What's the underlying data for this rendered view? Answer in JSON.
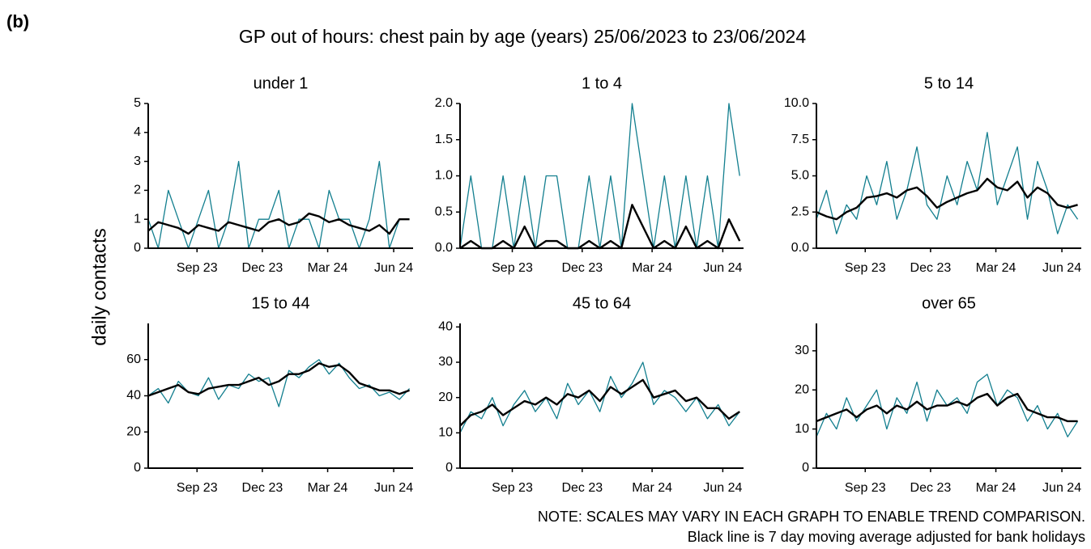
{
  "figure": {
    "label": "(b)",
    "title": "GP out of hours: chest pain by age (years) 25/06/2023 to 23/06/2024",
    "ylabel": "daily contacts",
    "notes": [
      "NOTE: SCALES MAY VARY IN EACH GRAPH TO ENABLE TREND COMPARISON.",
      "Black line is 7 day moving average adjusted for bank holidays"
    ]
  },
  "chart_data": [
    {
      "type": "line",
      "title": "under 1",
      "x": [
        "2023-06-25",
        "2023-07-09",
        "2023-07-23",
        "2023-08-06",
        "2023-08-20",
        "2023-09-03",
        "2023-09-17",
        "2023-10-01",
        "2023-10-15",
        "2023-10-29",
        "2023-11-12",
        "2023-11-26",
        "2023-12-10",
        "2023-12-24",
        "2024-01-07",
        "2024-01-21",
        "2024-02-04",
        "2024-02-18",
        "2024-03-03",
        "2024-03-17",
        "2024-03-31",
        "2024-04-14",
        "2024-04-28",
        "2024-05-12",
        "2024-05-26",
        "2024-06-09",
        "2024-06-23"
      ],
      "xlim": [
        "2023-06-25",
        "2024-06-28"
      ],
      "xticks": [
        {
          "value": "2023-09-01",
          "label": "Sep 23"
        },
        {
          "value": "2023-12-01",
          "label": "Dec 23"
        },
        {
          "value": "2024-03-01",
          "label": "Mar 24"
        },
        {
          "value": "2024-06-01",
          "label": "Jun 24"
        }
      ],
      "ylim": [
        0,
        5
      ],
      "yticks": [
        0,
        1,
        2,
        3,
        4,
        5
      ],
      "series": [
        {
          "name": "daily",
          "color": "#137f8f",
          "values": [
            1,
            0,
            2,
            1,
            0,
            1,
            2,
            0,
            1,
            3,
            0,
            1,
            1,
            2,
            0,
            1,
            1,
            0,
            2,
            1,
            1,
            0,
            1,
            3,
            0,
            1,
            1
          ]
        },
        {
          "name": "7 day average",
          "color": "#000000",
          "values": [
            0.6,
            0.9,
            0.8,
            0.7,
            0.5,
            0.8,
            0.7,
            0.6,
            0.9,
            0.8,
            0.7,
            0.6,
            0.9,
            1.0,
            0.8,
            0.9,
            1.2,
            1.1,
            0.9,
            1.0,
            0.8,
            0.7,
            0.6,
            0.8,
            0.5,
            1.0,
            1.0
          ]
        }
      ]
    },
    {
      "type": "line",
      "title": "1 to 4",
      "x": [
        "2023-06-25",
        "2023-07-09",
        "2023-07-23",
        "2023-08-06",
        "2023-08-20",
        "2023-09-03",
        "2023-09-17",
        "2023-10-01",
        "2023-10-15",
        "2023-10-29",
        "2023-11-12",
        "2023-11-26",
        "2023-12-10",
        "2023-12-24",
        "2024-01-07",
        "2024-01-21",
        "2024-02-04",
        "2024-02-18",
        "2024-03-03",
        "2024-03-17",
        "2024-03-31",
        "2024-04-14",
        "2024-04-28",
        "2024-05-12",
        "2024-05-26",
        "2024-06-09",
        "2024-06-23"
      ],
      "xlim": [
        "2023-06-25",
        "2024-06-28"
      ],
      "xticks": [
        {
          "value": "2023-09-01",
          "label": "Sep 23"
        },
        {
          "value": "2023-12-01",
          "label": "Dec 23"
        },
        {
          "value": "2024-03-01",
          "label": "Mar 24"
        },
        {
          "value": "2024-06-01",
          "label": "Jun 24"
        }
      ],
      "ylim": [
        0,
        2
      ],
      "yticks": [
        {
          "value": 0,
          "label": "0.0"
        },
        {
          "value": 0.5,
          "label": "0.5"
        },
        {
          "value": 1,
          "label": "1.0"
        },
        {
          "value": 1.5,
          "label": "1.5"
        },
        {
          "value": 2,
          "label": "2.0"
        }
      ],
      "series": [
        {
          "name": "daily",
          "color": "#137f8f",
          "values": [
            0,
            1,
            0,
            0,
            1,
            0,
            1,
            0,
            1,
            1,
            0,
            0,
            1,
            0,
            1,
            0,
            2,
            1,
            0,
            1,
            0,
            1,
            0,
            1,
            0,
            2,
            1
          ]
        },
        {
          "name": "7 day average",
          "color": "#000000",
          "values": [
            0,
            0.1,
            0,
            0,
            0.1,
            0,
            0.3,
            0,
            0.1,
            0.1,
            0,
            0,
            0.1,
            0,
            0.1,
            0,
            0.6,
            0.3,
            0,
            0.1,
            0,
            0.3,
            0,
            0.1,
            0,
            0.4,
            0.1
          ]
        }
      ]
    },
    {
      "type": "line",
      "title": "5 to 14",
      "x": [
        "2023-06-25",
        "2023-07-09",
        "2023-07-23",
        "2023-08-06",
        "2023-08-20",
        "2023-09-03",
        "2023-09-17",
        "2023-10-01",
        "2023-10-15",
        "2023-10-29",
        "2023-11-12",
        "2023-11-26",
        "2023-12-10",
        "2023-12-24",
        "2024-01-07",
        "2024-01-21",
        "2024-02-04",
        "2024-02-18",
        "2024-03-03",
        "2024-03-17",
        "2024-03-31",
        "2024-04-14",
        "2024-04-28",
        "2024-05-12",
        "2024-05-26",
        "2024-06-09",
        "2024-06-23"
      ],
      "xlim": [
        "2023-06-25",
        "2024-06-28"
      ],
      "xticks": [
        {
          "value": "2023-09-01",
          "label": "Sep 23"
        },
        {
          "value": "2023-12-01",
          "label": "Dec 23"
        },
        {
          "value": "2024-03-01",
          "label": "Mar 24"
        },
        {
          "value": "2024-06-01",
          "label": "Jun 24"
        }
      ],
      "ylim": [
        0,
        10
      ],
      "yticks": [
        {
          "value": 0,
          "label": "0.0"
        },
        {
          "value": 2.5,
          "label": "2.5"
        },
        {
          "value": 5,
          "label": "5.0"
        },
        {
          "value": 7.5,
          "label": "7.5"
        },
        {
          "value": 10,
          "label": "10.0"
        }
      ],
      "series": [
        {
          "name": "daily",
          "color": "#137f8f",
          "values": [
            2,
            4,
            1,
            3,
            2,
            5,
            3,
            6,
            2,
            4,
            7,
            3,
            2,
            5,
            3,
            6,
            4,
            8,
            3,
            5,
            7,
            2,
            6,
            4,
            1,
            3,
            2
          ]
        },
        {
          "name": "7 day average",
          "color": "#000000",
          "values": [
            2.5,
            2.2,
            2.0,
            2.5,
            2.8,
            3.5,
            3.6,
            3.8,
            3.5,
            4.0,
            4.2,
            3.6,
            2.8,
            3.2,
            3.5,
            3.8,
            4.0,
            4.8,
            4.2,
            4.0,
            4.6,
            3.5,
            4.2,
            3.8,
            3.0,
            2.8,
            3.0
          ]
        }
      ]
    },
    {
      "type": "line",
      "title": "15 to 44",
      "x": [
        "2023-06-25",
        "2023-07-09",
        "2023-07-23",
        "2023-08-06",
        "2023-08-20",
        "2023-09-03",
        "2023-09-17",
        "2023-10-01",
        "2023-10-15",
        "2023-10-29",
        "2023-11-12",
        "2023-11-26",
        "2023-12-10",
        "2023-12-24",
        "2024-01-07",
        "2024-01-21",
        "2024-02-04",
        "2024-02-18",
        "2024-03-03",
        "2024-03-17",
        "2024-03-31",
        "2024-04-14",
        "2024-04-28",
        "2024-05-12",
        "2024-05-26",
        "2024-06-09",
        "2024-06-23"
      ],
      "xlim": [
        "2023-06-25",
        "2024-06-28"
      ],
      "xticks": [
        {
          "value": "2023-09-01",
          "label": "Sep 23"
        },
        {
          "value": "2023-12-01",
          "label": "Dec 23"
        },
        {
          "value": "2024-03-01",
          "label": "Mar 24"
        },
        {
          "value": "2024-06-01",
          "label": "Jun 24"
        }
      ],
      "ylim": [
        0,
        80
      ],
      "yticks": [
        0,
        20,
        40,
        60
      ],
      "series": [
        {
          "name": "daily",
          "color": "#137f8f",
          "values": [
            40,
            44,
            36,
            48,
            42,
            40,
            50,
            38,
            46,
            44,
            52,
            48,
            50,
            34,
            54,
            50,
            56,
            60,
            52,
            58,
            50,
            44,
            46,
            40,
            42,
            38,
            44
          ]
        },
        {
          "name": "7 day average",
          "color": "#000000",
          "values": [
            40,
            42,
            44,
            46,
            42,
            41,
            44,
            45,
            46,
            46,
            48,
            50,
            46,
            48,
            52,
            52,
            54,
            58,
            56,
            57,
            53,
            47,
            45,
            43,
            43,
            41,
            43
          ]
        }
      ]
    },
    {
      "type": "line",
      "title": "45 to 64",
      "x": [
        "2023-06-25",
        "2023-07-09",
        "2023-07-23",
        "2023-08-06",
        "2023-08-20",
        "2023-09-03",
        "2023-09-17",
        "2023-10-01",
        "2023-10-15",
        "2023-10-29",
        "2023-11-12",
        "2023-11-26",
        "2023-12-10",
        "2023-12-24",
        "2024-01-07",
        "2024-01-21",
        "2024-02-04",
        "2024-02-18",
        "2024-03-03",
        "2024-03-17",
        "2024-03-31",
        "2024-04-14",
        "2024-04-28",
        "2024-05-12",
        "2024-05-26",
        "2024-06-09",
        "2024-06-23"
      ],
      "xlim": [
        "2023-06-25",
        "2024-06-28"
      ],
      "xticks": [
        {
          "value": "2023-09-01",
          "label": "Sep 23"
        },
        {
          "value": "2023-12-01",
          "label": "Dec 23"
        },
        {
          "value": "2024-03-01",
          "label": "Mar 24"
        },
        {
          "value": "2024-06-01",
          "label": "Jun 24"
        }
      ],
      "ylim": [
        0,
        41
      ],
      "yticks": [
        0,
        10,
        20,
        30,
        40
      ],
      "series": [
        {
          "name": "daily",
          "color": "#137f8f",
          "values": [
            10,
            16,
            14,
            20,
            12,
            18,
            22,
            16,
            20,
            14,
            24,
            18,
            22,
            16,
            26,
            20,
            24,
            30,
            18,
            22,
            20,
            16,
            20,
            14,
            18,
            12,
            16
          ]
        },
        {
          "name": "7 day average",
          "color": "#000000",
          "values": [
            12,
            15,
            16,
            18,
            15,
            17,
            19,
            18,
            20,
            18,
            21,
            20,
            22,
            19,
            23,
            21,
            23,
            25,
            20,
            21,
            22,
            19,
            20,
            17,
            17,
            14,
            16
          ]
        }
      ]
    },
    {
      "type": "line",
      "title": "over 65",
      "x": [
        "2023-06-25",
        "2023-07-09",
        "2023-07-23",
        "2023-08-06",
        "2023-08-20",
        "2023-09-03",
        "2023-09-17",
        "2023-10-01",
        "2023-10-15",
        "2023-10-29",
        "2023-11-12",
        "2023-11-26",
        "2023-12-10",
        "2023-12-24",
        "2024-01-07",
        "2024-01-21",
        "2024-02-04",
        "2024-02-18",
        "2024-03-03",
        "2024-03-17",
        "2024-03-31",
        "2024-04-14",
        "2024-04-28",
        "2024-05-12",
        "2024-05-26",
        "2024-06-09",
        "2024-06-23"
      ],
      "xlim": [
        "2023-06-25",
        "2024-06-28"
      ],
      "xticks": [
        {
          "value": "2023-09-01",
          "label": "Sep 23"
        },
        {
          "value": "2023-12-01",
          "label": "Dec 23"
        },
        {
          "value": "2024-03-01",
          "label": "Mar 24"
        },
        {
          "value": "2024-06-01",
          "label": "Jun 24"
        }
      ],
      "ylim": [
        0,
        37
      ],
      "yticks": [
        0,
        10,
        20,
        30
      ],
      "series": [
        {
          "name": "daily",
          "color": "#137f8f",
          "values": [
            8,
            14,
            10,
            18,
            12,
            16,
            20,
            10,
            18,
            14,
            22,
            12,
            20,
            16,
            18,
            14,
            22,
            24,
            16,
            20,
            18,
            12,
            16,
            10,
            14,
            8,
            12
          ]
        },
        {
          "name": "7 day average",
          "color": "#000000",
          "values": [
            12,
            13,
            14,
            15,
            13,
            15,
            16,
            14,
            16,
            15,
            17,
            15,
            16,
            16,
            17,
            16,
            18,
            19,
            16,
            18,
            19,
            15,
            14,
            13,
            13,
            12,
            12
          ]
        }
      ]
    }
  ]
}
